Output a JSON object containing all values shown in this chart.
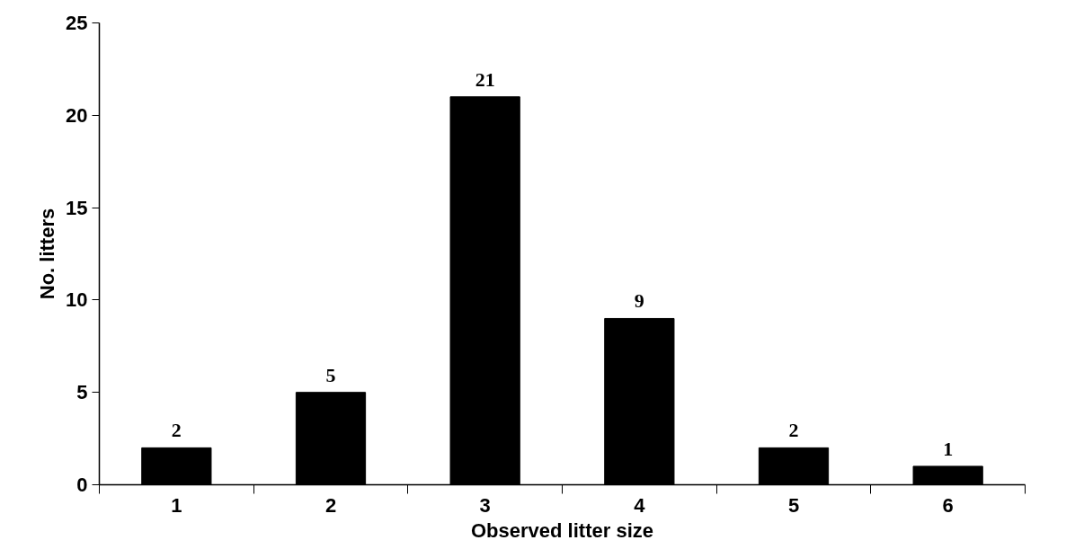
{
  "chart_data": {
    "type": "bar",
    "xlabel": "Observed litter size",
    "ylabel": "No. litters",
    "categories": [
      "1",
      "2",
      "3",
      "4",
      "5",
      "6"
    ],
    "values": [
      2,
      5,
      21,
      9,
      2,
      1
    ],
    "color": "#000000",
    "ylim": [
      0,
      25
    ],
    "yticks": [
      0,
      5,
      10,
      15,
      20,
      25
    ],
    "grid": false,
    "data_labels": true
  }
}
